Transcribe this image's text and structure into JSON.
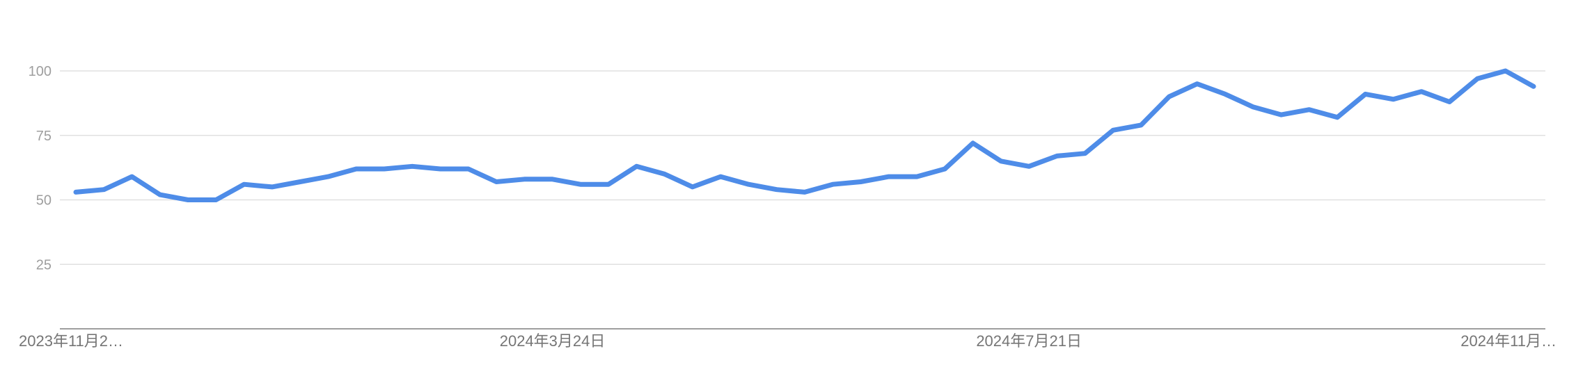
{
  "chart_data": {
    "type": "line",
    "ylim": [
      0,
      100
    ],
    "y_ticks": [
      25,
      50,
      75,
      100
    ],
    "x_tick_labels": [
      "2023年11月2…",
      "2024年3月24日",
      "2024年7月21日",
      "2024年11月…"
    ],
    "x_tick_indices": [
      0,
      17,
      34,
      52
    ],
    "grid": true,
    "colors": {
      "series": "#4e8ce8",
      "grid": "#e0e0e0",
      "axis": "#9e9e9e"
    },
    "series": [
      {
        "values": [
          53,
          54,
          59,
          52,
          50,
          50,
          56,
          55,
          57,
          59,
          62,
          62,
          63,
          62,
          62,
          57,
          58,
          58,
          56,
          56,
          63,
          60,
          55,
          59,
          56,
          54,
          53,
          56,
          57,
          59,
          59,
          62,
          72,
          65,
          63,
          67,
          68,
          77,
          79,
          90,
          95,
          91,
          86,
          83,
          85,
          82,
          91,
          89,
          92,
          88,
          97,
          100,
          94
        ]
      }
    ]
  }
}
